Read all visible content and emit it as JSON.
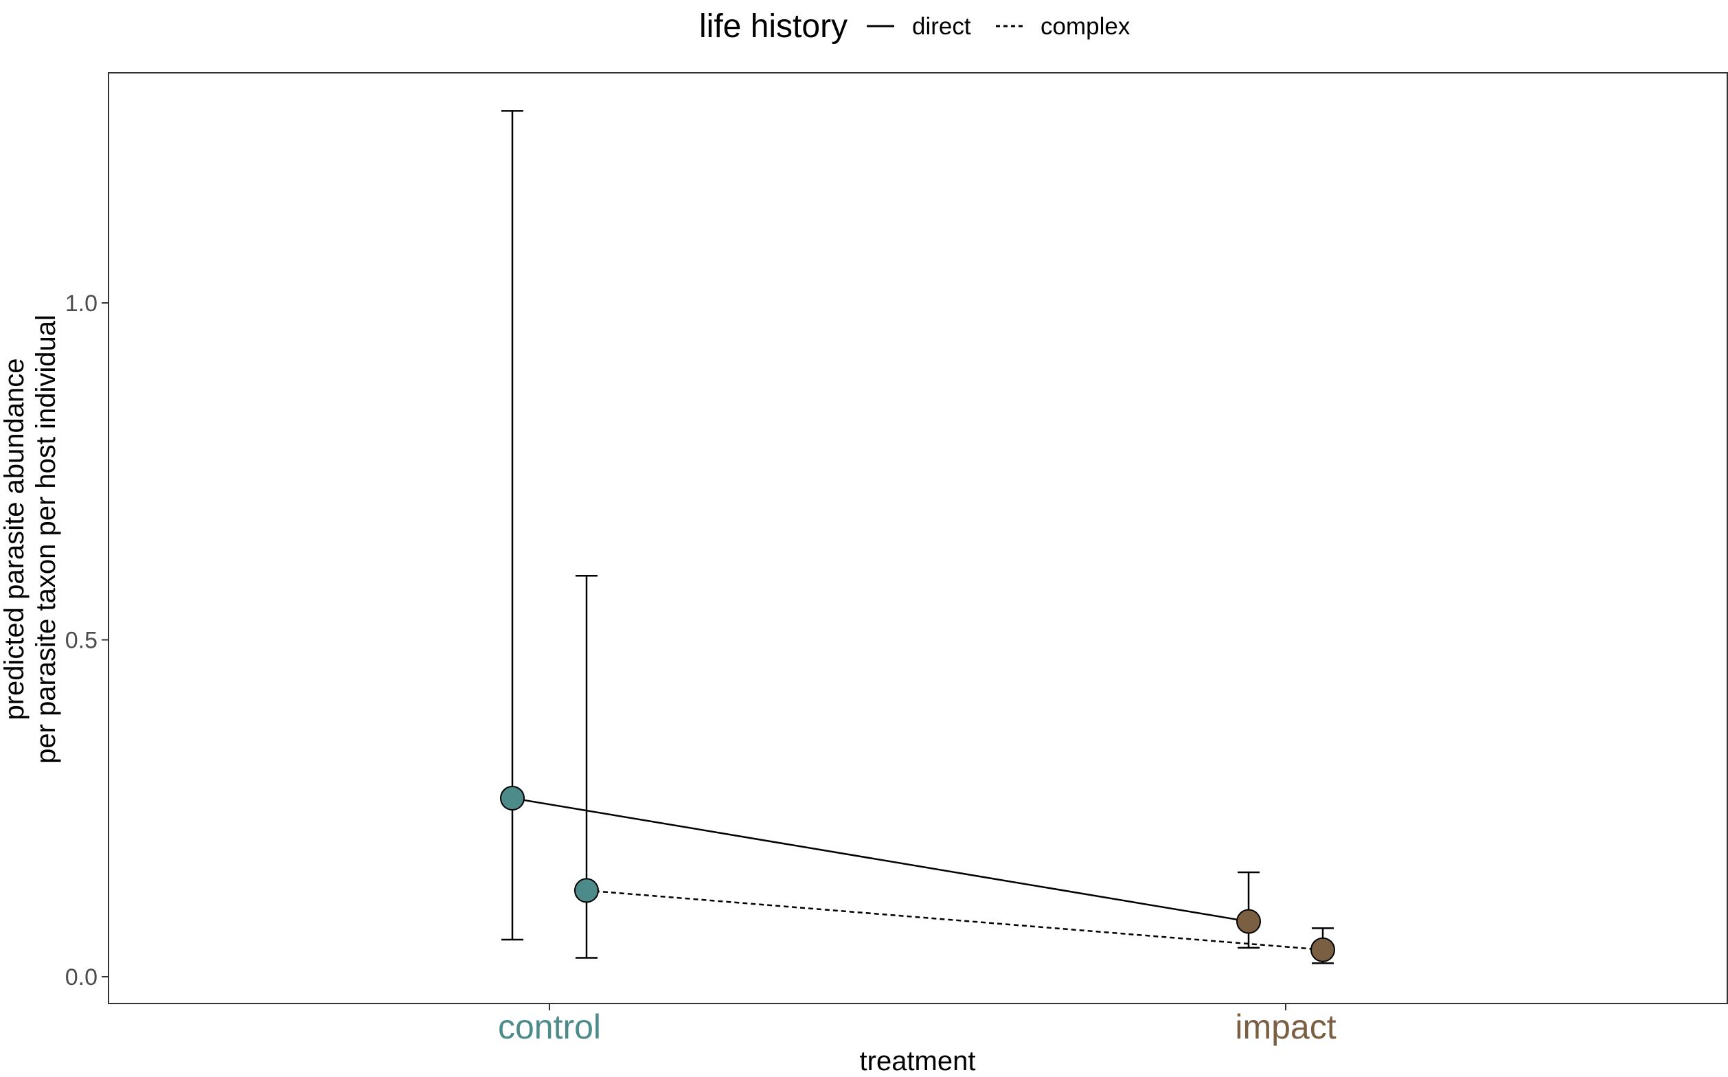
{
  "chart_data": {
    "type": "scatter",
    "categories": [
      "control",
      "impact"
    ],
    "category_colors": {
      "control": "#4d8a8a",
      "impact": "#7a5f43"
    },
    "xlabel": "treatment",
    "ylabel_line1": "predicted parasite abundance",
    "ylabel_line2": "per parasite taxon per host individual",
    "y_ticks": [
      0.0,
      0.5,
      1.0
    ],
    "y_tick_labels": [
      "0.0",
      "0.5",
      "1.0"
    ],
    "ylim": [
      -0.04,
      1.345
    ],
    "grid": false,
    "legend": {
      "position": "top",
      "title": "life history",
      "entries": [
        {
          "label": "direct",
          "linetype": "solid"
        },
        {
          "label": "complex",
          "linetype": "dashed"
        }
      ]
    },
    "series": [
      {
        "name": "direct",
        "linetype": "solid",
        "points": [
          {
            "category": "control",
            "y": 0.265,
            "ymin": 0.055,
            "ymax": 1.285
          },
          {
            "category": "impact",
            "y": 0.082,
            "ymin": 0.043,
            "ymax": 0.155
          }
        ]
      },
      {
        "name": "complex",
        "linetype": "dashed",
        "points": [
          {
            "category": "control",
            "y": 0.128,
            "ymin": 0.028,
            "ymax": 0.595
          },
          {
            "category": "impact",
            "y": 0.04,
            "ymin": 0.02,
            "ymax": 0.072
          }
        ]
      }
    ]
  }
}
